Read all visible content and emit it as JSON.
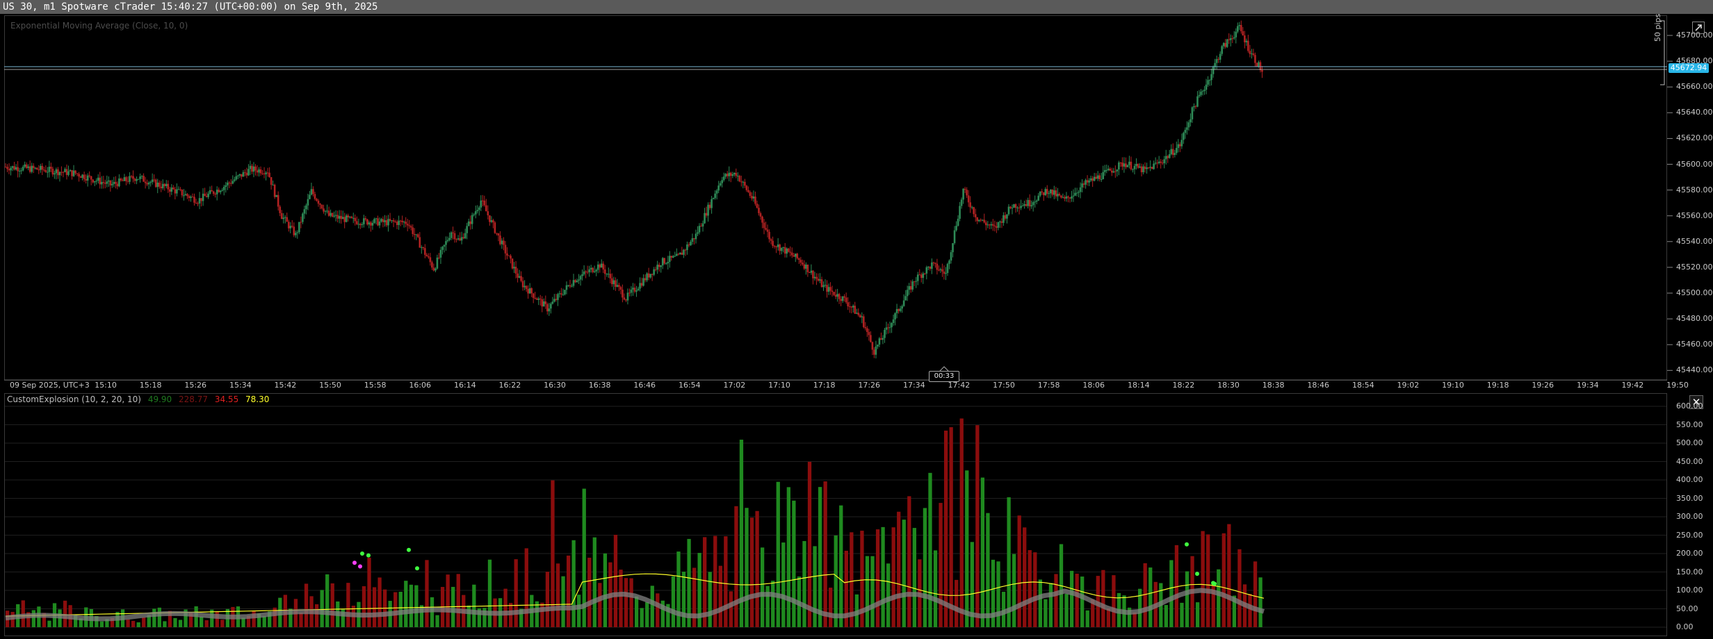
{
  "window": {
    "title": "US 30, m1 Spotware cTrader 15:40:27 (UTC+00:00) on Sep 9th, 2025"
  },
  "main_chart": {
    "indicator_label": "Exponential Moving Average (Close, 10, 0)",
    "current_price_label": "45672.94",
    "pips_label": "50 pips",
    "countdown": "00:33",
    "price_axis": [
      "45700",
      "45680",
      "45660",
      "45640",
      "45620",
      "45600",
      "45580",
      "45560",
      "45540",
      "45520",
      "45500",
      "45480",
      "45460",
      "45440"
    ],
    "price_axis_suffix": ".00",
    "time_axis_start": "09 Sep 2025, UTC+3",
    "time_axis": [
      "15:10",
      "15:18",
      "15:26",
      "15:34",
      "15:42",
      "15:50",
      "15:58",
      "16:06",
      "16:14",
      "16:22",
      "16:30",
      "16:38",
      "16:46",
      "16:54",
      "17:02",
      "17:10",
      "17:18",
      "17:26",
      "17:34",
      "17:42",
      "17:50",
      "17:58",
      "18:06",
      "18:14",
      "18:22",
      "18:30",
      "18:38",
      "18:46",
      "18:54",
      "19:02",
      "19:10",
      "19:18",
      "19:26",
      "19:34",
      "19:42",
      "19:50"
    ],
    "colors": {
      "bull": "#2e8b57",
      "bear": "#b22222",
      "price_line": "#7ab8d4",
      "badge": "#29b6e8"
    }
  },
  "indicator_panel": {
    "name": "CustomExplosion (10, 2, 20, 10)",
    "value_1": "49.90",
    "value_2": "228.77",
    "value_3": "34.55",
    "value_4": "78.30",
    "axis": [
      "600.00",
      "550.00",
      "500.00",
      "450.00",
      "400.00",
      "350.00",
      "300.00",
      "250.00",
      "200.00",
      "150.00",
      "100.00",
      "50.00",
      "0.00"
    ],
    "colors": {
      "bull": "#1f8a1f",
      "bear": "#8b0d0d",
      "dead_zone": "#ffff2a",
      "explosion": "#808080"
    }
  },
  "icons": {
    "expand": "external-link-icon",
    "close": "close-icon"
  }
}
